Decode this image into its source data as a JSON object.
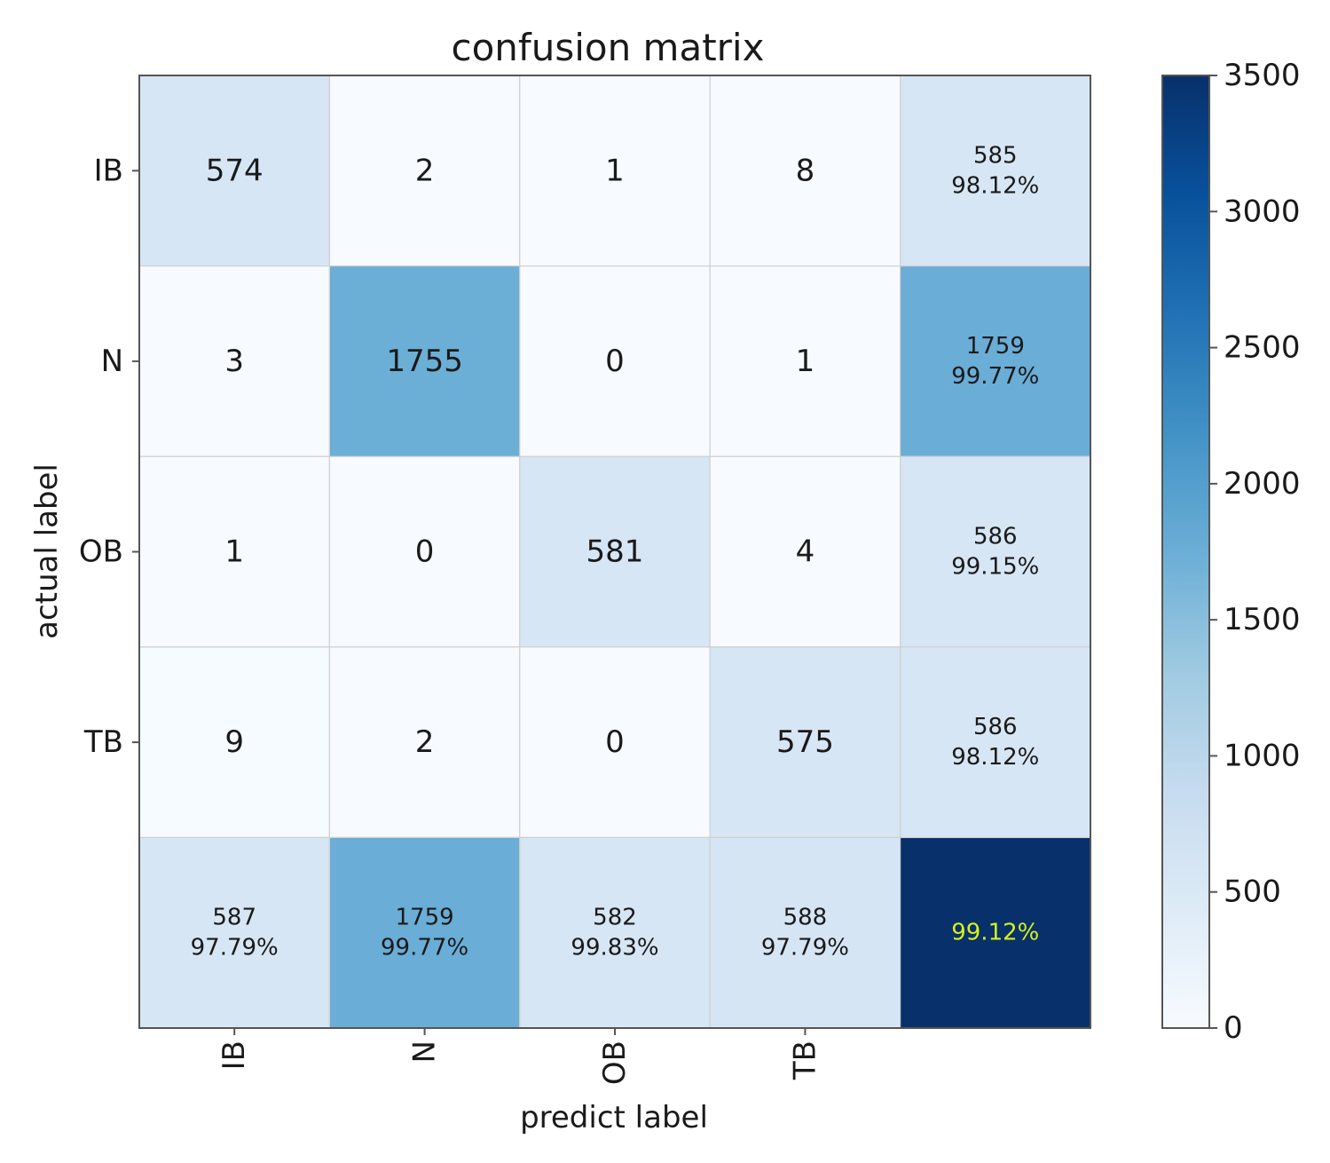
{
  "chart_data": {
    "type": "heatmap",
    "title": "confusion matrix",
    "xlabel": "predict label",
    "ylabel": "actual label",
    "row_labels": [
      "IB",
      "N",
      "OB",
      "TB",
      ""
    ],
    "col_labels": [
      "IB",
      "N",
      "OB",
      "TB",
      ""
    ],
    "matrix": [
      [
        574,
        2,
        1,
        8
      ],
      [
        3,
        1755,
        0,
        1
      ],
      [
        1,
        0,
        581,
        4
      ],
      [
        9,
        2,
        0,
        575
      ]
    ],
    "row_totals": [
      {
        "count": "585",
        "percent": "98.12%"
      },
      {
        "count": "1759",
        "percent": "99.77%"
      },
      {
        "count": "586",
        "percent": "99.15%"
      },
      {
        "count": "586",
        "percent": "98.12%"
      }
    ],
    "col_totals": [
      {
        "count": "587",
        "percent": "97.79%"
      },
      {
        "count": "1759",
        "percent": "99.77%"
      },
      {
        "count": "582",
        "percent": "99.83%"
      },
      {
        "count": "588",
        "percent": "97.79%"
      }
    ],
    "overall": {
      "percent": "99.12%",
      "color_value": 3500
    },
    "colorbar": {
      "min": 0,
      "max": 3500,
      "ticks": [
        0,
        500,
        1000,
        1500,
        2000,
        2500,
        3000,
        3500
      ]
    },
    "colormap": "Blues",
    "overall_text_color": "#d4f01e"
  }
}
